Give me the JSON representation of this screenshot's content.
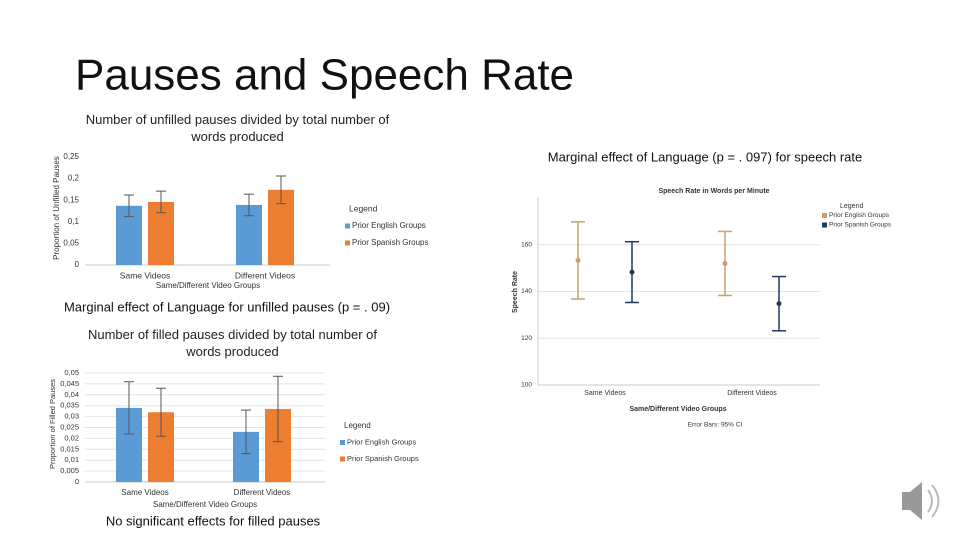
{
  "title": "Pauses and Speech Rate",
  "notes": [
    "Marginal effect of Language  (p = . 097) for speech rate",
    "Marginal effect of Language for unfilled pauses (p = . 09)",
    "No significant effects for filled pauses"
  ],
  "chart_data": [
    {
      "type": "bar",
      "title": "Number of unfilled pauses divided by total number of words produced",
      "x_label": "Same/Different Video Groups",
      "y_label": "Proportion of Unfilled Pauses",
      "legend_title": "Legend",
      "categories": [
        "Same Videos",
        "Different Videos"
      ],
      "series": [
        {
          "name": "Prior English Groups",
          "color": "#5b9bd5",
          "values": [
            0.137,
            0.139
          ],
          "errors": [
            0.025,
            0.025
          ]
        },
        {
          "name": "Prior Spanish Groups",
          "color": "#ed7d31",
          "values": [
            0.146,
            0.174
          ],
          "errors": [
            0.025,
            0.032
          ]
        }
      ],
      "ylim": [
        0,
        0.25
      ],
      "yticks": [
        0,
        {
          "value": 0.05,
          "label": "0,05"
        },
        {
          "value": 0.1,
          "label": "0,1"
        },
        {
          "value": 0.15,
          "label": "0,15"
        },
        {
          "value": 0.2,
          "label": "0,2"
        },
        {
          "value": 0.25,
          "label": "0,25"
        }
      ],
      "grid": false
    },
    {
      "type": "bar",
      "title": "Number of filled pauses divided by total number of words produced",
      "x_label": "Same/Different Video Groups",
      "y_label": "Proportion of Filled Pauses",
      "legend_title": "Legend",
      "categories": [
        "Same Videos",
        "Different Videos"
      ],
      "series": [
        {
          "name": "Prior English Groups",
          "color": "#5b9bd5",
          "values": [
            0.034,
            0.023
          ],
          "errors": [
            0.012,
            0.01
          ]
        },
        {
          "name": "Prior Spanish Groups",
          "color": "#ed7d31",
          "values": [
            0.032,
            0.0335
          ],
          "errors": [
            0.011,
            0.015
          ]
        }
      ],
      "ylim": [
        0,
        0.05
      ],
      "yticks": [
        0,
        {
          "value": 0.005,
          "label": "0,005"
        },
        {
          "value": 0.01,
          "label": "0,01"
        },
        {
          "value": 0.015,
          "label": "0,015"
        },
        {
          "value": 0.02,
          "label": "0,02"
        },
        {
          "value": 0.025,
          "label": "0,025"
        },
        {
          "value": 0.03,
          "label": "0,03"
        },
        {
          "value": 0.035,
          "label": "0,035"
        },
        {
          "value": 0.04,
          "label": "0,04"
        },
        {
          "value": 0.045,
          "label": "0,045"
        },
        {
          "value": 0.05,
          "label": "0,05"
        }
      ],
      "grid": true
    },
    {
      "type": "errorbar",
      "title": "Speech Rate in Words per Minute",
      "x_label": "Same/Different Video Groups",
      "y_label": "Speech Rate",
      "legend_title": "Legend",
      "footnote": "Error Bars: 95% CI",
      "categories": [
        "Same Videos",
        "Different Videos"
      ],
      "series": [
        {
          "name": "Prior English Groups",
          "color": "#c9a06e",
          "values": [
            153.3,
            152
          ],
          "errors": [
            16.5,
            13.7
          ]
        },
        {
          "name": "Prior Spanish Groups",
          "color": "#1f3a5f",
          "values": [
            148.3,
            134.8
          ],
          "errors": [
            13,
            11.6
          ]
        }
      ],
      "ylim": [
        100,
        180
      ],
      "yticks": [
        100,
        120,
        140,
        160
      ],
      "grid": true
    }
  ]
}
